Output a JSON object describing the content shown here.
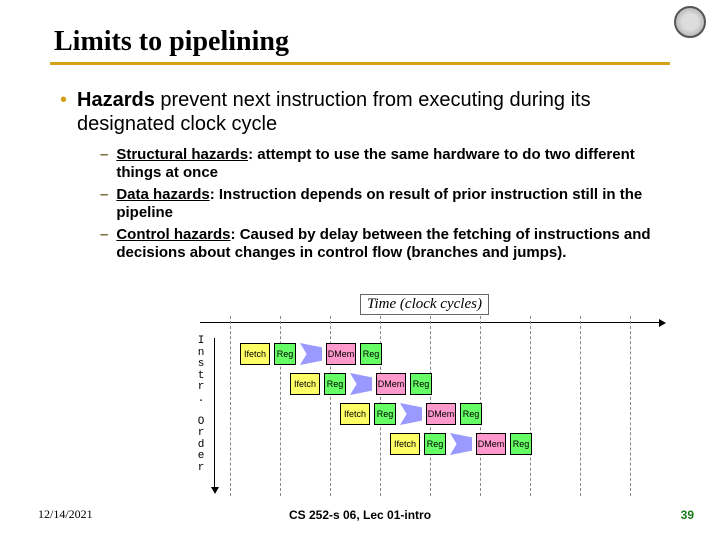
{
  "title": "Limits to pipelining",
  "main_bullet": {
    "prefix": "Hazards",
    "rest": " prevent next instruction from executing during its designated clock cycle"
  },
  "sub_bullets": [
    {
      "term": "Structural hazards",
      "rest": ": attempt to use the same hardware to do two different things at once"
    },
    {
      "term": "Data hazards",
      "rest": ": Instruction depends on result of prior instruction still in the pipeline"
    },
    {
      "term": "Control hazards",
      "rest": ": Caused by delay between the fetching of instructions and decisions about changes in control flow (branches and jumps)."
    }
  ],
  "diagram": {
    "time_label": "Time (clock cycles)",
    "instr_label": "I\nn\ns\nt\nr\n.\n\nO\nr\nd\ne\nr",
    "stages": [
      "Ifetch",
      "Reg",
      "",
      "DMem",
      "Reg"
    ],
    "stage_colors": {
      "ifetch": "#ffff66",
      "reg": "#66ff66",
      "alu": "#9999ff",
      "mem": "#ff99cc"
    },
    "cycle_count": 9,
    "rows": 4,
    "row_top_base": 40,
    "row_top_step": 30,
    "row_left_base": 40,
    "row_left_step": 50
  },
  "footer": {
    "date": "12/14/2021",
    "center": "CS 252-s 06, Lec 01-intro",
    "page": "39"
  },
  "colors": {
    "accent": "#d4a017",
    "bg": "#ffffff"
  }
}
